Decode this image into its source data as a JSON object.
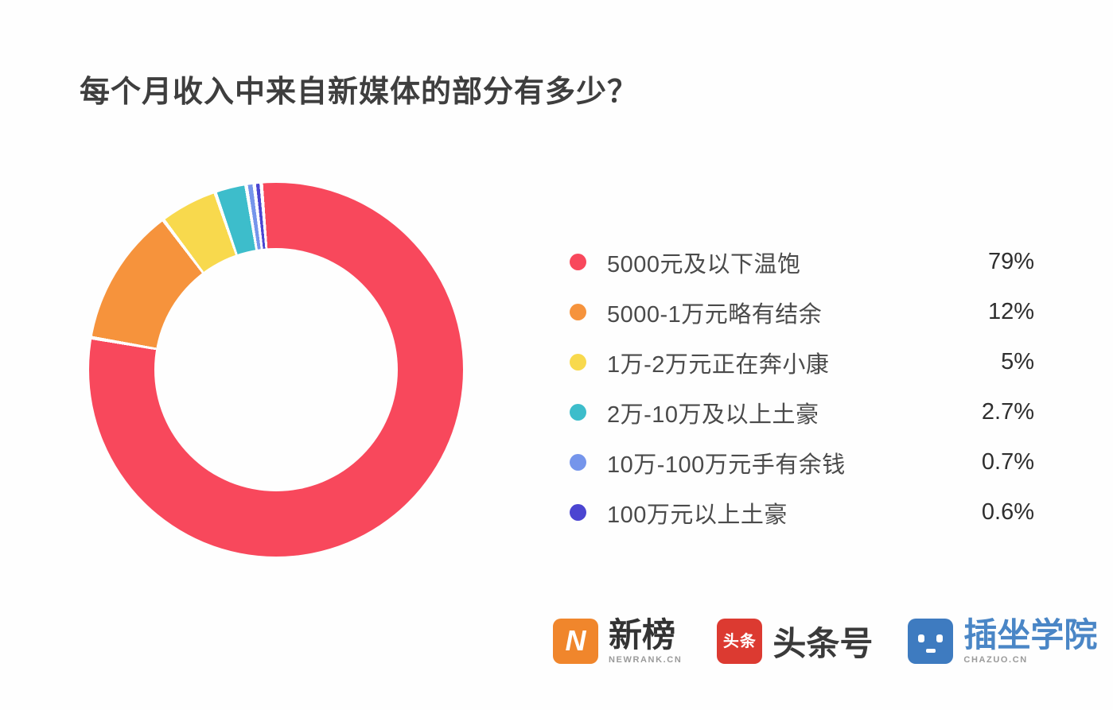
{
  "title": "每个月收入中来自新媒体的部分有多少？",
  "chart_data": {
    "type": "pie",
    "subtype": "donut",
    "title": "每个月收入中来自新媒体的部分有多少？",
    "categories": [
      "5000元及以下温饱",
      "5000-1万元略有结余",
      "1万-2万元正在奔小康",
      "2万-10万及以上土豪",
      "10万-100万元手有余钱",
      "100万元以上土豪"
    ],
    "values": [
      79,
      12,
      5,
      2.7,
      0.7,
      0.6
    ],
    "value_labels": [
      "79%",
      "12%",
      "5%",
      "2.7%",
      "0.7%",
      "0.6%"
    ],
    "colors": [
      "#f8485c",
      "#f6933c",
      "#f8d94d",
      "#3dbdcb",
      "#7595eb",
      "#4b45d1"
    ],
    "start_angle_deg": -4,
    "direction": "clockwise",
    "legend_position": "right",
    "donut_hole_ratio": 0.65,
    "slice_gap_color": "#fefefe"
  },
  "footer": {
    "newrank": {
      "title": "新榜",
      "subtitle": "NEWRANK.CN",
      "badge_text": "N",
      "badge_color": "#f0862c",
      "title_color": "#333333"
    },
    "toutiao": {
      "title": "头条号",
      "badge_text": "头条",
      "badge_color": "#dc3a31",
      "title_color": "#3a3a3a"
    },
    "chazuo": {
      "title": "插坐学院",
      "subtitle": "CHAZUO.CN",
      "badge_color": "#3e7bc0",
      "title_color": "#4a86c6"
    }
  }
}
